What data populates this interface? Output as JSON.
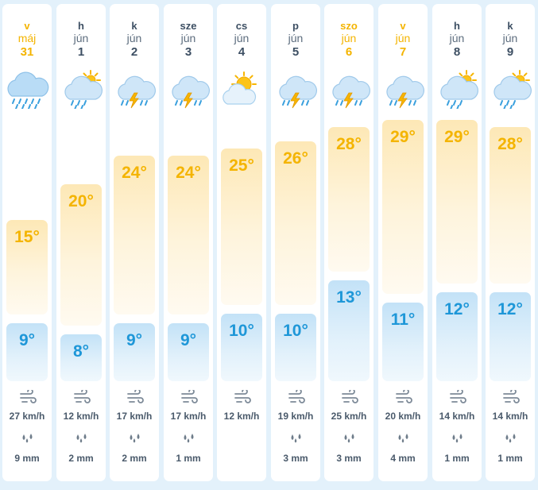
{
  "colors": {
    "warm": "#f4b400",
    "cold": "#1e97d8",
    "text": "#3d4f63",
    "background": "#e3f1fb"
  },
  "scale": {
    "max_temp": 29,
    "min_temp": 8
  },
  "days": [
    {
      "dow": "v",
      "month": "máj",
      "day": "31",
      "weekend": true,
      "icon": "heavy-rain-cloud-icon",
      "high": 15,
      "high_label": "15°",
      "low": 9,
      "low_label": "9°",
      "wind": "27 km/h",
      "rain": "9 mm"
    },
    {
      "dow": "h",
      "month": "jún",
      "day": "1",
      "weekend": false,
      "icon": "sun-cloud-rain-icon",
      "high": 20,
      "high_label": "20°",
      "low": 8,
      "low_label": "8°",
      "wind": "12 km/h",
      "rain": "2 mm"
    },
    {
      "dow": "k",
      "month": "jún",
      "day": "2",
      "weekend": false,
      "icon": "thunderstorm-cloud-icon",
      "high": 24,
      "high_label": "24°",
      "low": 9,
      "low_label": "9°",
      "wind": "17 km/h",
      "rain": "2 mm"
    },
    {
      "dow": "sze",
      "month": "jún",
      "day": "3",
      "weekend": false,
      "icon": "thunderstorm-cloud-icon",
      "high": 24,
      "high_label": "24°",
      "low": 9,
      "low_label": "9°",
      "wind": "17 km/h",
      "rain": "1 mm"
    },
    {
      "dow": "cs",
      "month": "jún",
      "day": "4",
      "weekend": false,
      "icon": "sun-behind-cloud-icon",
      "high": 25,
      "high_label": "25°",
      "low": 10,
      "low_label": "10°",
      "wind": "12 km/h",
      "rain": ""
    },
    {
      "dow": "p",
      "month": "jún",
      "day": "5",
      "weekend": false,
      "icon": "thunderstorm-cloud-icon",
      "high": 26,
      "high_label": "26°",
      "low": 10,
      "low_label": "10°",
      "wind": "19 km/h",
      "rain": "3 mm"
    },
    {
      "dow": "szo",
      "month": "jún",
      "day": "6",
      "weekend": true,
      "icon": "thunderstorm-cloud-icon",
      "high": 28,
      "high_label": "28°",
      "low": 13,
      "low_label": "13°",
      "wind": "25 km/h",
      "rain": "3 mm"
    },
    {
      "dow": "v",
      "month": "jún",
      "day": "7",
      "weekend": true,
      "icon": "thunderstorm-cloud-icon",
      "high": 29,
      "high_label": "29°",
      "low": 11,
      "low_label": "11°",
      "wind": "20 km/h",
      "rain": "4 mm"
    },
    {
      "dow": "h",
      "month": "jún",
      "day": "8",
      "weekend": false,
      "icon": "sun-cloud-rain-icon",
      "high": 29,
      "high_label": "29°",
      "low": 12,
      "low_label": "12°",
      "wind": "14 km/h",
      "rain": "1 mm"
    },
    {
      "dow": "k",
      "month": "jún",
      "day": "9",
      "weekend": false,
      "icon": "sun-cloud-rain-icon",
      "high": 28,
      "high_label": "28°",
      "low": 12,
      "low_label": "12°",
      "wind": "14 km/h",
      "rain": "1 mm"
    }
  ]
}
